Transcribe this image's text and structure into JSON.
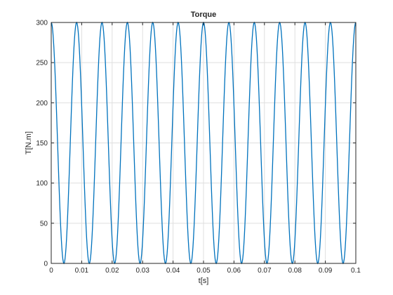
{
  "chart_data": {
    "type": "line",
    "title": "Torque",
    "xlabel": "t[s]",
    "ylabel": "T[N.m]",
    "xlim": [
      0,
      0.1
    ],
    "ylim": [
      0,
      300
    ],
    "xticks": [
      "0",
      "0.01",
      "0.02",
      "0.03",
      "0.04",
      "0.05",
      "0.06",
      "0.07",
      "0.08",
      "0.09",
      "0.1"
    ],
    "yticks": [
      "0",
      "50",
      "100",
      "150",
      "200",
      "250",
      "300"
    ],
    "grid": true,
    "series": [
      {
        "color": "#0072bd",
        "description": "T = 150 + 150*cos(2*pi*120*t), t from 0 to 0.1 s",
        "x": [
          0,
          0.0020833,
          0.0041667,
          0.00625,
          0.0083333,
          0.0104167,
          0.0125,
          0.0145833,
          0.0166667,
          0.01875,
          0.0208333,
          0.0229167,
          0.025,
          0.0270833,
          0.0291667,
          0.03125,
          0.0333333,
          0.0354167,
          0.0375,
          0.0395833,
          0.0416667,
          0.04375,
          0.0458333,
          0.0479167,
          0.05,
          0.0520833,
          0.0541667,
          0.05625,
          0.0583333,
          0.0604167,
          0.0625,
          0.0645833,
          0.0666667,
          0.06875,
          0.0708333,
          0.0729167,
          0.075,
          0.0770833,
          0.0791667,
          0.08125,
          0.0833333,
          0.0854167,
          0.0875,
          0.0895833,
          0.0916667,
          0.09375,
          0.0958333,
          0.0979167,
          0.1
        ],
        "y": [
          300,
          150,
          0,
          150,
          300,
          150,
          0,
          150,
          300,
          150,
          0,
          150,
          300,
          150,
          0,
          150,
          300,
          150,
          0,
          150,
          300,
          150,
          0,
          150,
          300,
          150,
          0,
          150,
          300,
          150,
          0,
          150,
          300,
          150,
          0,
          150,
          300,
          150,
          0,
          150,
          300,
          150,
          0,
          150,
          300,
          150,
          0,
          150,
          300
        ]
      }
    ]
  }
}
